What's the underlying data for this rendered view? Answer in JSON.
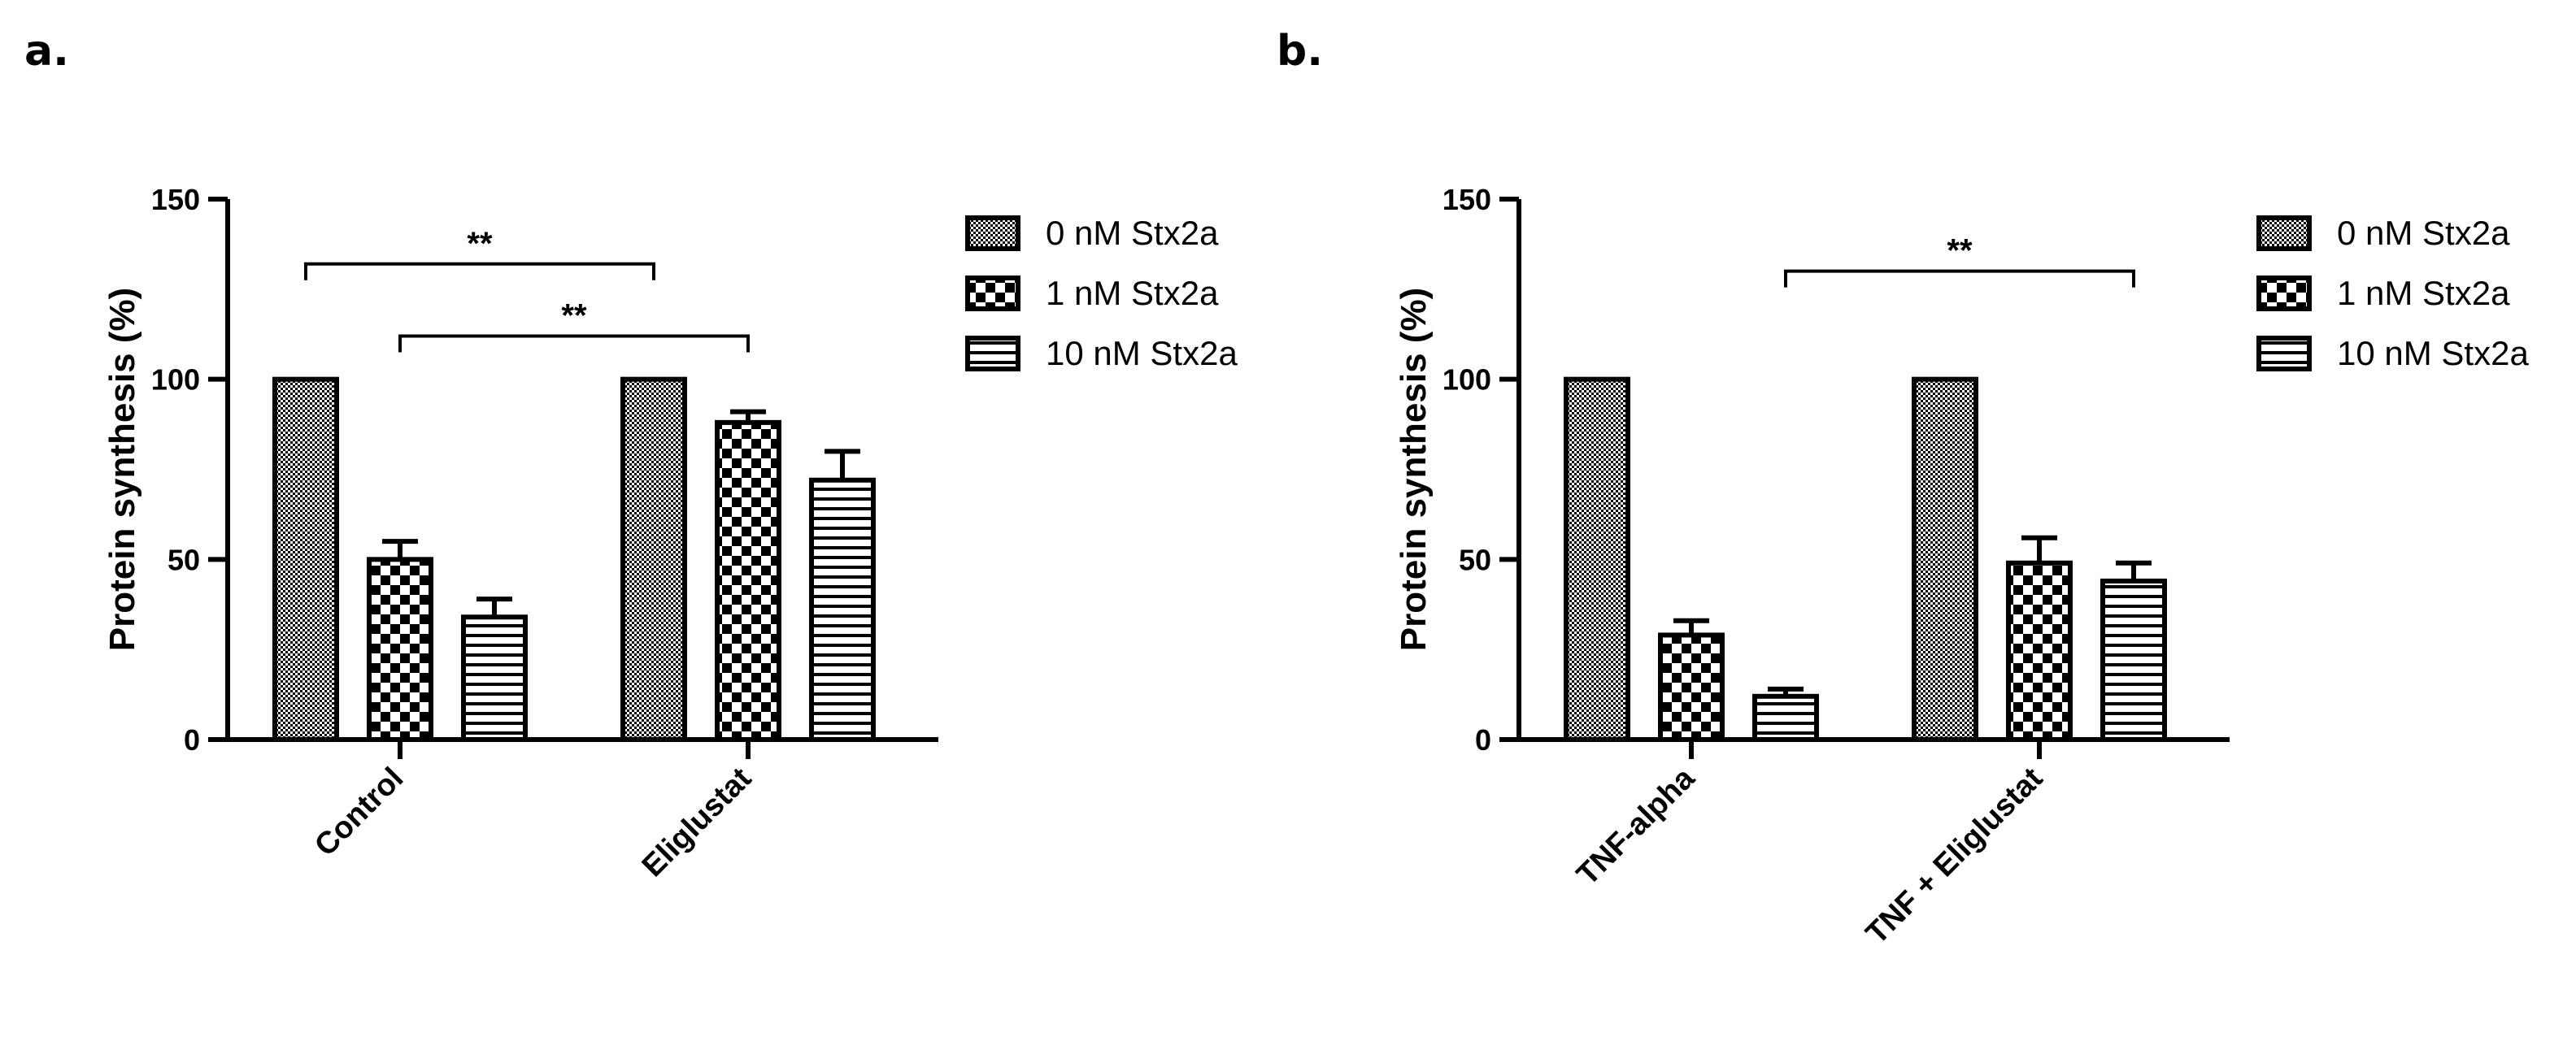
{
  "chart_data": [
    {
      "panel": "a.",
      "type": "bar",
      "categories": [
        "Control",
        "Eliglustat"
      ],
      "series": [
        {
          "name": "0 nM Stx2a",
          "pattern": "fine",
          "values": [
            100,
            100
          ],
          "errors": [
            0,
            0
          ]
        },
        {
          "name": "1 nM Stx2a",
          "pattern": "check",
          "values": [
            50,
            88
          ],
          "errors": [
            5,
            3
          ]
        },
        {
          "name": "10 nM Stx2a",
          "pattern": "hlines",
          "values": [
            34,
            72
          ],
          "errors": [
            5,
            8
          ]
        }
      ],
      "ylabel": "Protein synthesis (%)",
      "xlabel": "",
      "ylim": [
        0,
        150
      ],
      "yticks": [
        0,
        50,
        100,
        150
      ],
      "legend_position": "top-right",
      "annotations": [
        {
          "text": "**",
          "from": [
            0,
            0
          ],
          "to": [
            1,
            0
          ],
          "level": 132
        },
        {
          "text": "**",
          "from": [
            0,
            1
          ],
          "to": [
            1,
            1
          ],
          "level": 112
        }
      ]
    },
    {
      "panel": "b.",
      "type": "bar",
      "categories": [
        "TNF-alpha",
        "TNF + Eliglustat"
      ],
      "series": [
        {
          "name": "0 nM Stx2a",
          "pattern": "fine",
          "values": [
            100,
            100
          ],
          "errors": [
            0,
            0
          ]
        },
        {
          "name": "1 nM Stx2a",
          "pattern": "check",
          "values": [
            29,
            49
          ],
          "errors": [
            4,
            7
          ]
        },
        {
          "name": "10 nM Stx2a",
          "pattern": "hlines",
          "values": [
            12,
            44
          ],
          "errors": [
            2,
            5
          ]
        }
      ],
      "ylabel": "Protein synthesis (%)",
      "xlabel": "",
      "ylim": [
        0,
        150
      ],
      "yticks": [
        0,
        50,
        100,
        150
      ],
      "legend_position": "top-right",
      "annotations": [
        {
          "text": "**",
          "from": [
            0,
            2
          ],
          "to": [
            1,
            2
          ],
          "level": 130
        }
      ]
    }
  ]
}
